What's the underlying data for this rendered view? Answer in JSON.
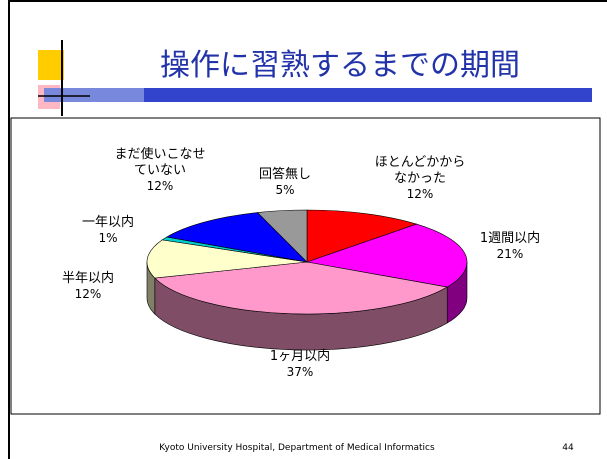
{
  "title": "操作に習熟するまでの期間",
  "footer": "Kyoto University Hospital, Department of Medical Informatics",
  "page_number": "44",
  "chart_data": {
    "type": "pie3d",
    "categories": [
      "ほとんどかから\nなかった",
      "1週間以内",
      "1ヶ月以内",
      "半年以内",
      "一年以内",
      "まだ使いこなせ\nていない",
      "回答無し"
    ],
    "values": [
      12,
      21,
      37,
      12,
      1,
      12,
      5
    ],
    "value_labels": [
      "12%",
      "21%",
      "37%",
      "12%",
      "1%",
      "12%",
      "5%"
    ],
    "colors": [
      "#ff0000",
      "#ff00ff",
      "#ff99cc",
      "#ffffcc",
      "#00cccc",
      "#0000ff",
      "#999999"
    ]
  }
}
